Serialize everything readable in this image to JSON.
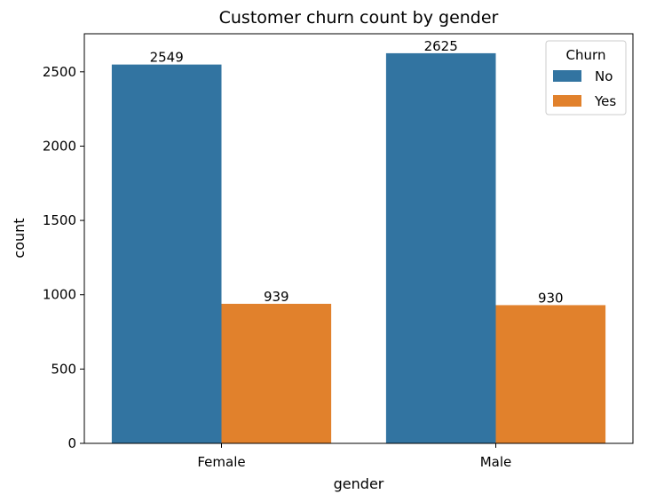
{
  "chart_data": {
    "type": "bar",
    "title": "Customer churn count by gender",
    "xlabel": "gender",
    "ylabel": "count",
    "categories": [
      "Female",
      "Male"
    ],
    "series": [
      {
        "name": "No",
        "values": [
          2549,
          2625
        ],
        "color": "#3274a1"
      },
      {
        "name": "Yes",
        "values": [
          939,
          930
        ],
        "color": "#e1812c"
      }
    ],
    "data_labels": [
      [
        "2549",
        "2625"
      ],
      [
        "939",
        "930"
      ]
    ],
    "ylim": [
      0,
      2756
    ],
    "yticks": [
      0,
      500,
      1000,
      1500,
      2000,
      2500
    ],
    "ytick_labels": [
      "0",
      "500",
      "1000",
      "1500",
      "2000",
      "2500"
    ],
    "legend": {
      "title": "Churn",
      "placement": "upper-right",
      "entries": [
        "No",
        "Yes"
      ]
    },
    "grid": false
  }
}
